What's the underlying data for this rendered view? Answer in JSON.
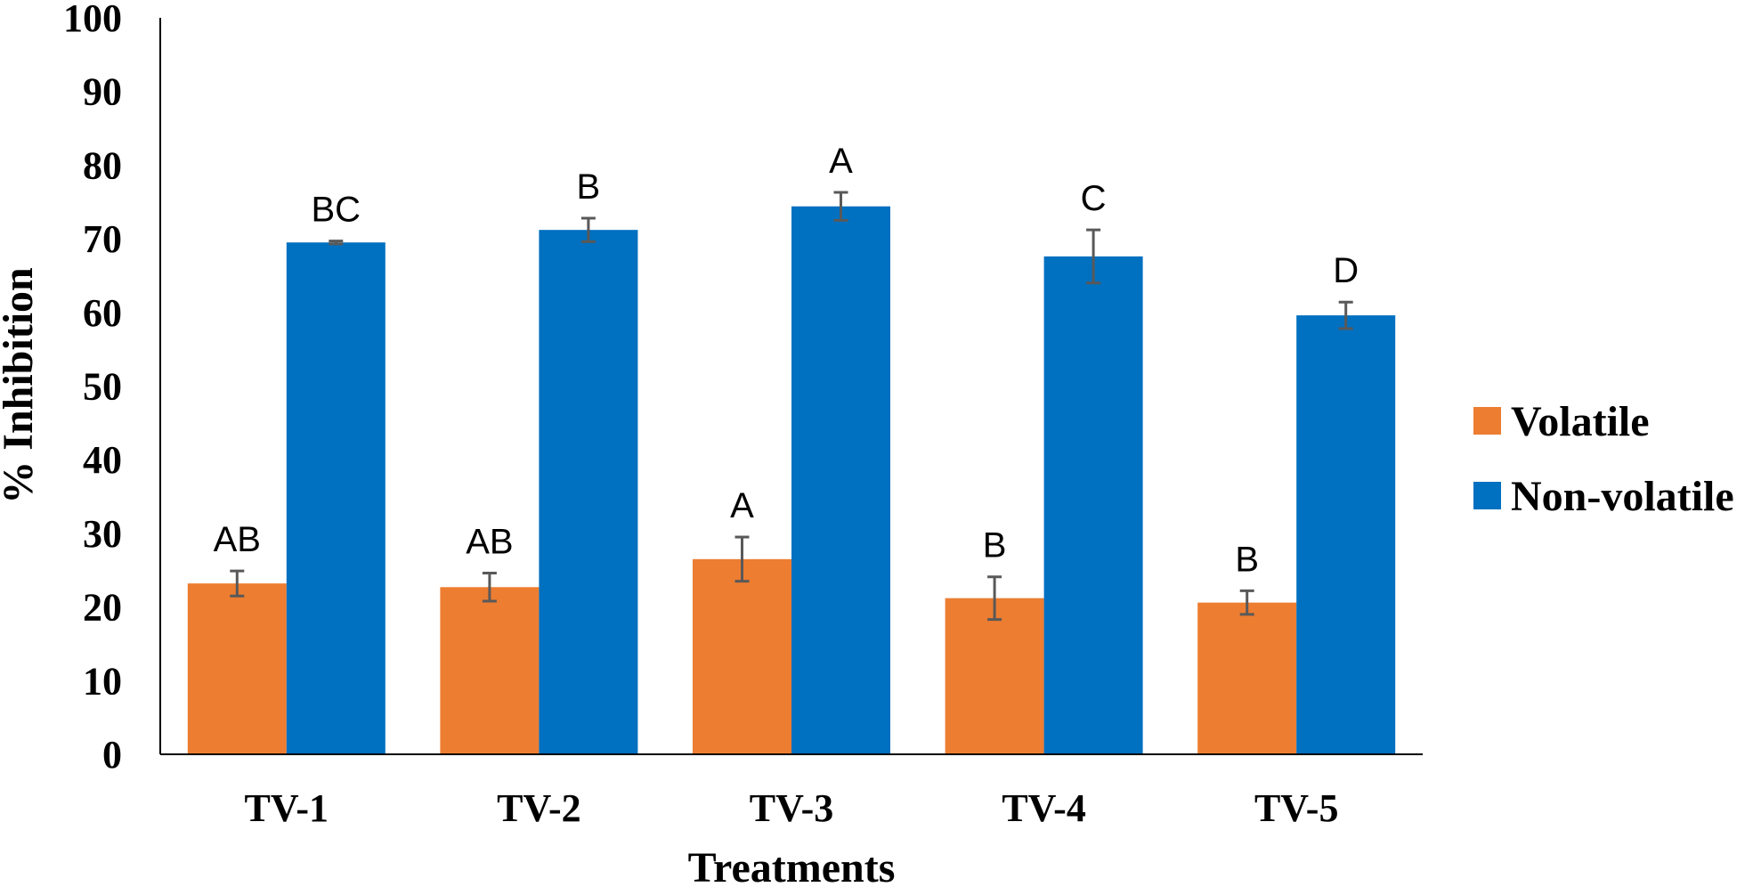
{
  "colors": {
    "volatile": "#ED7D31",
    "non_volatile": "#0070C0",
    "error_bar": "#595959",
    "axis": "#000000"
  },
  "chart_data": {
    "type": "bar",
    "title": "",
    "xlabel": "Treatments",
    "ylabel": "% Inhibition",
    "ylim": [
      0,
      100
    ],
    "yticks": [
      "0",
      "10",
      "20",
      "30",
      "40",
      "50",
      "60",
      "70",
      "80",
      "90",
      "100"
    ],
    "categories": [
      "TV-1",
      "TV-2",
      "TV-3",
      "TV-4",
      "TV-5"
    ],
    "series": [
      {
        "name": "Volatile",
        "color": "#ED7D31",
        "values": [
          23.2,
          22.7,
          26.5,
          21.2,
          20.6
        ],
        "errors": [
          1.7,
          1.9,
          3.0,
          2.9,
          1.6
        ],
        "labels": [
          "AB",
          "AB",
          "A",
          "B",
          "B"
        ]
      },
      {
        "name": "Non-volatile",
        "color": "#0070C0",
        "values": [
          69.5,
          71.2,
          74.4,
          67.6,
          59.6
        ],
        "errors": [
          0.2,
          1.6,
          1.9,
          3.6,
          1.8
        ],
        "labels": [
          "BC",
          "B",
          "A",
          "C",
          "D"
        ]
      }
    ],
    "legend_position": "right",
    "grid": false
  }
}
